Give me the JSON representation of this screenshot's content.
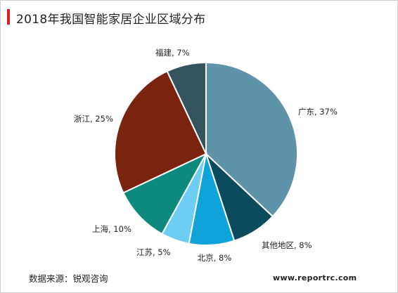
{
  "title": "2018年我国智能家居企业区域分布",
  "source": "数据来源：锐观咨询",
  "watermark_url": "www.reportrc.com",
  "colors": {
    "accent": "#e21b1b",
    "slice_border": "#ffffff"
  },
  "chart_data": {
    "type": "pie",
    "title": "2018年我国智能家居企业区域分布",
    "unit": "%",
    "slices": [
      {
        "label": "广东, 37%",
        "name": "广东",
        "value": 37,
        "color": "#5e93aa"
      },
      {
        "label": "其他地区, 8%",
        "name": "其他地区",
        "value": 8,
        "color": "#0c4a5e"
      },
      {
        "label": "北京, 8%",
        "name": "北京",
        "value": 8,
        "color": "#10a3d9"
      },
      {
        "label": "江苏, 5%",
        "name": "江苏",
        "value": 5,
        "color": "#6dcdf3"
      },
      {
        "label": "上海, 10%",
        "name": "上海",
        "value": 10,
        "color": "#0d8a7d"
      },
      {
        "label": "浙江, 25%",
        "name": "浙江",
        "value": 25,
        "color": "#7a2410"
      },
      {
        "label": "福建, 7%",
        "name": "福建",
        "value": 7,
        "color": "#33535f"
      }
    ],
    "start_angle_deg": 0,
    "direction": "clockwise"
  }
}
